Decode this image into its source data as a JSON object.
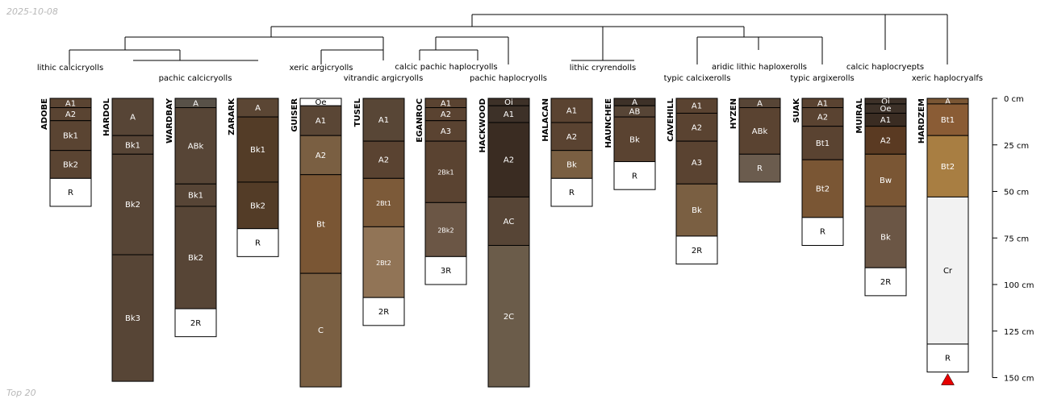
{
  "header": {
    "date": "2025-10-08",
    "subset_label": "Top 20"
  },
  "chart_data": {
    "type": "soil-profile-sketch",
    "depth_unit": "cm",
    "depth_axis": {
      "ticks": [
        0,
        25,
        50,
        75,
        100,
        125,
        150
      ],
      "label_suffix": " cm",
      "max": 150
    },
    "profiles": [
      {
        "name": "ADOBE",
        "horizons": [
          {
            "name": "A1",
            "top": 0,
            "bottom": 5,
            "color": "#5a4432"
          },
          {
            "name": "A2",
            "top": 5,
            "bottom": 12,
            "color": "#5a4432"
          },
          {
            "name": "Bk1",
            "top": 12,
            "bottom": 28,
            "color": "#5a4432"
          },
          {
            "name": "Bk2",
            "top": 28,
            "bottom": 43,
            "color": "#5a4432"
          },
          {
            "name": "R",
            "top": 43,
            "bottom": 58,
            "color": "#ffffff"
          }
        ]
      },
      {
        "name": "HARDOL",
        "horizons": [
          {
            "name": "A",
            "top": 0,
            "bottom": 20,
            "color": "#574536"
          },
          {
            "name": "Bk1",
            "top": 20,
            "bottom": 30,
            "color": "#574536"
          },
          {
            "name": "Bk2",
            "top": 30,
            "bottom": 84,
            "color": "#574536"
          },
          {
            "name": "Bk3",
            "top": 84,
            "bottom": 152,
            "color": "#574536"
          }
        ]
      },
      {
        "name": "WARDBAY",
        "horizons": [
          {
            "name": "A",
            "top": 0,
            "bottom": 5,
            "color": "#585148"
          },
          {
            "name": "ABk",
            "top": 5,
            "bottom": 46,
            "color": "#574536"
          },
          {
            "name": "Bk1",
            "top": 46,
            "bottom": 58,
            "color": "#574536"
          },
          {
            "name": "Bk2",
            "top": 58,
            "bottom": 113,
            "color": "#574536"
          },
          {
            "name": "2R",
            "top": 113,
            "bottom": 128,
            "color": "#ffffff"
          }
        ]
      },
      {
        "name": "ZARARK",
        "horizons": [
          {
            "name": "A",
            "top": 0,
            "bottom": 10,
            "color": "#5b4634"
          },
          {
            "name": "Bk1",
            "top": 10,
            "bottom": 45,
            "color": "#533c27"
          },
          {
            "name": "Bk2",
            "top": 45,
            "bottom": 70,
            "color": "#533c27"
          },
          {
            "name": "R",
            "top": 70,
            "bottom": 85,
            "color": "#ffffff"
          }
        ]
      },
      {
        "name": "GUISER",
        "horizons": [
          {
            "name": "Oe",
            "top": 0,
            "bottom": 4,
            "color": "#ffffff"
          },
          {
            "name": "A1",
            "top": 4,
            "bottom": 20,
            "color": "#5a4635"
          },
          {
            "name": "A2",
            "top": 20,
            "bottom": 41,
            "color": "#7a5f42"
          },
          {
            "name": "Bt",
            "top": 41,
            "bottom": 94,
            "color": "#7a5634"
          },
          {
            "name": "C",
            "top": 94,
            "bottom": 155,
            "color": "#7a5f42"
          }
        ]
      },
      {
        "name": "TUSEL",
        "horizons": [
          {
            "name": "A1",
            "top": 0,
            "bottom": 23,
            "color": "#584636"
          },
          {
            "name": "A2",
            "top": 23,
            "bottom": 43,
            "color": "#5a4331"
          },
          {
            "name": "2Bt1",
            "top": 43,
            "bottom": 69,
            "color": "#7c5a39"
          },
          {
            "name": "2Bt2",
            "top": 69,
            "bottom": 107,
            "color": "#917456"
          },
          {
            "name": "2R",
            "top": 107,
            "bottom": 122,
            "color": "#ffffff"
          }
        ]
      },
      {
        "name": "EGANROC",
        "horizons": [
          {
            "name": "A1",
            "top": 0,
            "bottom": 5,
            "color": "#5a4331"
          },
          {
            "name": "A2",
            "top": 5,
            "bottom": 12,
            "color": "#5a4331"
          },
          {
            "name": "A3",
            "top": 12,
            "bottom": 23,
            "color": "#5a4331"
          },
          {
            "name": "2Bk1",
            "top": 23,
            "bottom": 56,
            "color": "#5a4331"
          },
          {
            "name": "2Bk2",
            "top": 56,
            "bottom": 85,
            "color": "#6b5645"
          },
          {
            "name": "3R",
            "top": 85,
            "bottom": 100,
            "color": "#ffffff"
          }
        ]
      },
      {
        "name": "HACKWOOD",
        "horizons": [
          {
            "name": "Oi",
            "top": 0,
            "bottom": 4,
            "color": "#3d3128"
          },
          {
            "name": "A1",
            "top": 4,
            "bottom": 13,
            "color": "#3d3128"
          },
          {
            "name": "A2",
            "top": 13,
            "bottom": 53,
            "color": "#3a2c22"
          },
          {
            "name": "AC",
            "top": 53,
            "bottom": 79,
            "color": "#574536"
          },
          {
            "name": "2C",
            "top": 79,
            "bottom": 155,
            "color": "#6b5c4a"
          }
        ]
      },
      {
        "name": "HALACAN",
        "horizons": [
          {
            "name": "A1",
            "top": 0,
            "bottom": 13,
            "color": "#5a4331"
          },
          {
            "name": "A2",
            "top": 13,
            "bottom": 28,
            "color": "#5a4331"
          },
          {
            "name": "Bk",
            "top": 28,
            "bottom": 43,
            "color": "#7a5f42"
          },
          {
            "name": "R",
            "top": 43,
            "bottom": 58,
            "color": "#ffffff"
          }
        ]
      },
      {
        "name": "HAUNCHEE",
        "horizons": [
          {
            "name": "A",
            "top": 0,
            "bottom": 4,
            "color": "#3d3128"
          },
          {
            "name": "AB",
            "top": 4,
            "bottom": 10,
            "color": "#574536"
          },
          {
            "name": "Bk",
            "top": 10,
            "bottom": 34,
            "color": "#5a4331"
          },
          {
            "name": "R",
            "top": 34,
            "bottom": 49,
            "color": "#ffffff"
          }
        ]
      },
      {
        "name": "CAVEHILL",
        "horizons": [
          {
            "name": "A1",
            "top": 0,
            "bottom": 8,
            "color": "#5a4331"
          },
          {
            "name": "A2",
            "top": 8,
            "bottom": 23,
            "color": "#5a4331"
          },
          {
            "name": "A3",
            "top": 23,
            "bottom": 46,
            "color": "#5a4331"
          },
          {
            "name": "Bk",
            "top": 46,
            "bottom": 74,
            "color": "#7a5f42"
          },
          {
            "name": "2R",
            "top": 74,
            "bottom": 89,
            "color": "#ffffff"
          }
        ]
      },
      {
        "name": "HYZEN",
        "horizons": [
          {
            "name": "A",
            "top": 0,
            "bottom": 5,
            "color": "#574536"
          },
          {
            "name": "ABk",
            "top": 5,
            "bottom": 30,
            "color": "#5a4331"
          },
          {
            "name": "R",
            "top": 30,
            "bottom": 45,
            "color": "#6b5c4e"
          }
        ]
      },
      {
        "name": "SUAK",
        "horizons": [
          {
            "name": "A1",
            "top": 0,
            "bottom": 5,
            "color": "#5a4331"
          },
          {
            "name": "A2",
            "top": 5,
            "bottom": 15,
            "color": "#5a4331"
          },
          {
            "name": "Bt1",
            "top": 15,
            "bottom": 33,
            "color": "#5a4331"
          },
          {
            "name": "Bt2",
            "top": 33,
            "bottom": 64,
            "color": "#7a5634"
          },
          {
            "name": "R",
            "top": 64,
            "bottom": 79,
            "color": "#ffffff"
          }
        ]
      },
      {
        "name": "MUIRAL",
        "horizons": [
          {
            "name": "Oi",
            "top": 0,
            "bottom": 3,
            "color": "#3d3128"
          },
          {
            "name": "Oe",
            "top": 3,
            "bottom": 8,
            "color": "#3d3128"
          },
          {
            "name": "A1",
            "top": 8,
            "bottom": 15,
            "color": "#3a2c22"
          },
          {
            "name": "A2",
            "top": 15,
            "bottom": 30,
            "color": "#5a3a22"
          },
          {
            "name": "Bw",
            "top": 30,
            "bottom": 58,
            "color": "#7a5634"
          },
          {
            "name": "Bk",
            "top": 58,
            "bottom": 91,
            "color": "#6b5645"
          },
          {
            "name": "2R",
            "top": 91,
            "bottom": 106,
            "color": "#ffffff"
          }
        ]
      },
      {
        "name": "HARDZEM",
        "horizons": [
          {
            "name": "A",
            "top": 0,
            "bottom": 3,
            "color": "#7a5634"
          },
          {
            "name": "Bt1",
            "top": 3,
            "bottom": 20,
            "color": "#8a5c35"
          },
          {
            "name": "Bt2",
            "top": 20,
            "bottom": 53,
            "color": "#a87e42"
          },
          {
            "name": "Cr",
            "top": 53,
            "bottom": 132,
            "color": "#f2f2f2"
          },
          {
            "name": "R",
            "top": 132,
            "bottom": 147,
            "color": "#ffffff"
          }
        ],
        "truncated": true
      }
    ],
    "taxa_labels": [
      "lithic calcicryolls",
      "pachic calcicryolls",
      "xeric argicryolls",
      "vitrandic argicryolls",
      "calcic pachic haplocryolls",
      "pachic haplocryolls",
      "lithic cryrendolls",
      "typic calcixerolls",
      "aridic lithic haploxerolls",
      "typic argixerolls",
      "calcic haplocryepts",
      "xeric haplocryalfs"
    ],
    "truncation_marker_color": "#e60000"
  }
}
